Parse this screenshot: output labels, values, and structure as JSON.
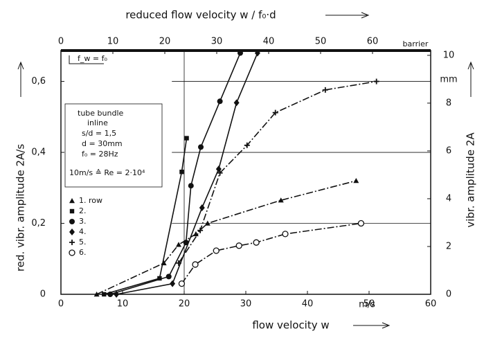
{
  "chart_data": {
    "type": "line",
    "title": "reduced flow velocity w / f₀·d",
    "xlabel": "flow velocity w",
    "xunit": "m/s",
    "ylabel": "red. vibr. amplitude 2A/s",
    "y2label": "vibr. amplitude 2A",
    "y2unit": "mm",
    "annotations": [
      "barrier",
      "f_w = f₀",
      "tube bundle",
      "inline",
      "s/d = 1,5",
      "d = 30mm",
      "f₀ = 28Hz",
      "10m/s ≙ Re = 2·10⁴"
    ],
    "xlim": [
      0,
      60
    ],
    "xticks": [
      0,
      10,
      20,
      30,
      40,
      50,
      60
    ],
    "x2lim": [
      0,
      71.2
    ],
    "x2ticks": [
      0,
      10,
      20,
      30,
      40,
      50,
      60
    ],
    "ylim": [
      0,
      0.687
    ],
    "yticks": [
      0,
      {
        "value": 0.2,
        "label": "0,2"
      },
      {
        "value": 0.4,
        "label": "0,4"
      },
      {
        "value": 0.6,
        "label": "0,6"
      }
    ],
    "y2lim": [
      0,
      10.2
    ],
    "y2ticks": [
      0,
      2,
      4,
      6,
      8,
      10
    ],
    "grid": true,
    "series": [
      {
        "name": "1. row",
        "marker": "triangle",
        "color": "#111",
        "x": [
          5.8,
          16.7,
          19.1,
          21.9,
          23.8,
          35.7,
          47.9
        ],
        "values": [
          0,
          0.088,
          0.14,
          0.17,
          0.2,
          0.265,
          0.32
        ]
      },
      {
        "name": "2.",
        "marker": "square",
        "color": "#111",
        "x": [
          7,
          16.0,
          19.6,
          20.4
        ],
        "values": [
          0,
          0.045,
          0.345,
          0.44
        ]
      },
      {
        "name": "3.",
        "marker": "circle",
        "color": "#111",
        "x": [
          8,
          17.5,
          20.3,
          21.1,
          22.7,
          25.8,
          29.1
        ],
        "values": [
          0,
          0.05,
          0.146,
          0.306,
          0.415,
          0.544,
          0.68
        ]
      },
      {
        "name": "4.",
        "marker": "diamond",
        "color": "#111",
        "x": [
          9,
          18.1,
          22.9,
          25.6,
          28.5,
          31.9
        ],
        "values": [
          0,
          0.03,
          0.244,
          0.353,
          0.54,
          0.68
        ]
      },
      {
        "name": "5.",
        "marker": "plus",
        "color": "#111",
        "x": [
          19.1,
          22.6,
          25.8,
          30.2,
          34.8,
          42.9,
          51.2
        ],
        "values": [
          0.088,
          0.18,
          0.342,
          0.42,
          0.512,
          0.576,
          0.6
        ]
      },
      {
        "name": "6.",
        "marker": "open-circle",
        "color": "#111",
        "x": [
          19.6,
          21.8,
          25.2,
          28.9,
          31.7,
          36.4,
          48.7
        ],
        "values": [
          0.03,
          0.084,
          0.123,
          0.137,
          0.146,
          0.17,
          0.2
        ]
      }
    ]
  }
}
